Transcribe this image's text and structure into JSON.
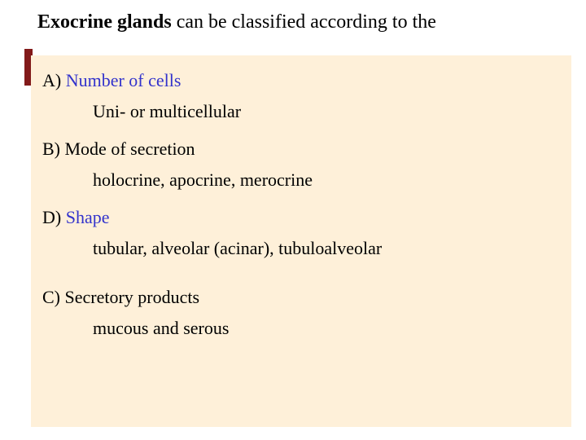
{
  "slide": {
    "title_bold": "Exocrine glands",
    "title_rest": " can be classified according to the",
    "background_color": "#ffffff",
    "box_color": "#fef0d9",
    "shadow_color": "#821a1a",
    "label_color": "#3333cc",
    "text_color": "#000000",
    "title_fontsize": 24,
    "body_fontsize": 22,
    "categories": [
      {
        "prefix": "A) ",
        "label": "Number of cells",
        "sub": "Uni- or multicellular",
        "label_colored": true
      },
      {
        "prefix": "B) ",
        "label": "Mode of secretion",
        "sub": "holocrine, apocrine, merocrine",
        "label_colored": false
      },
      {
        "prefix": "D) ",
        "label": "Shape",
        "sub": "tubular, alveolar (acinar), tubuloalveolar",
        "label_colored": true
      },
      {
        "prefix": "C)  ",
        "label": "Secretory products",
        "sub": "mucous and serous",
        "label_colored": false
      }
    ]
  }
}
